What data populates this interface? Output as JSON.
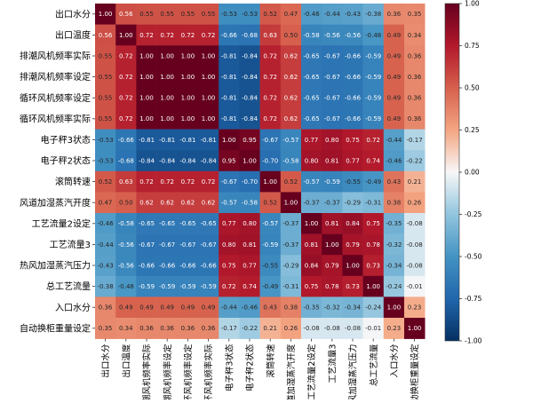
{
  "chart_data": {
    "type": "heatmap",
    "title": "",
    "xlabel": "",
    "ylabel": "",
    "labels": [
      "出口水分",
      "出口温度",
      "排潮风机频率实际",
      "排潮风机频率设定",
      "循环风机频率设定",
      "循环风机频率实际",
      "电子秤3状态",
      "电子秤2状态",
      "滚筒转速",
      "风道加湿蒸汽开度",
      "工艺流量2设定",
      "工艺流量3",
      "热风加湿蒸汽压力",
      "总工艺流量",
      "入口水分",
      "自动换柜重量设定"
    ],
    "matrix": [
      [
        1.0,
        0.56,
        0.55,
        0.55,
        0.55,
        0.55,
        -0.53,
        -0.53,
        0.52,
        0.47,
        -0.46,
        -0.44,
        -0.43,
        -0.38,
        0.36,
        0.35
      ],
      [
        0.56,
        1.0,
        0.72,
        0.72,
        0.72,
        0.72,
        -0.66,
        -0.68,
        0.63,
        0.5,
        -0.58,
        -0.56,
        -0.56,
        -0.48,
        0.49,
        0.34
      ],
      [
        0.55,
        0.72,
        1.0,
        1.0,
        1.0,
        1.0,
        -0.81,
        -0.84,
        0.72,
        0.62,
        -0.65,
        -0.67,
        -0.66,
        -0.59,
        0.49,
        0.36
      ],
      [
        0.55,
        0.72,
        1.0,
        1.0,
        1.0,
        1.0,
        -0.81,
        -0.84,
        0.72,
        0.62,
        -0.65,
        -0.67,
        -0.66,
        -0.59,
        0.49,
        0.36
      ],
      [
        0.55,
        0.72,
        1.0,
        1.0,
        1.0,
        1.0,
        -0.81,
        -0.84,
        0.72,
        0.62,
        -0.65,
        -0.67,
        -0.66,
        -0.59,
        0.49,
        0.36
      ],
      [
        0.55,
        0.72,
        1.0,
        1.0,
        1.0,
        1.0,
        -0.81,
        -0.84,
        0.72,
        0.62,
        -0.65,
        -0.67,
        -0.66,
        -0.59,
        0.49,
        0.36
      ],
      [
        -0.53,
        -0.66,
        -0.81,
        -0.81,
        -0.81,
        -0.81,
        1.0,
        0.95,
        -0.67,
        -0.57,
        0.77,
        0.8,
        0.75,
        0.72,
        -0.44,
        -0.17
      ],
      [
        -0.53,
        -0.68,
        -0.84,
        -0.84,
        -0.84,
        -0.84,
        0.95,
        1.0,
        -0.7,
        -0.58,
        0.8,
        0.81,
        0.77,
        0.74,
        -0.46,
        -0.22
      ],
      [
        0.52,
        0.63,
        0.72,
        0.72,
        0.72,
        0.72,
        -0.67,
        -0.7,
        1.0,
        0.52,
        -0.57,
        -0.59,
        -0.55,
        -0.49,
        0.43,
        0.21
      ],
      [
        0.47,
        0.5,
        0.62,
        0.62,
        0.62,
        0.62,
        -0.57,
        -0.58,
        0.52,
        1.0,
        -0.37,
        -0.37,
        -0.29,
        -0.31,
        0.38,
        0.26
      ],
      [
        -0.46,
        -0.58,
        -0.65,
        -0.65,
        -0.65,
        -0.65,
        0.77,
        0.8,
        -0.57,
        -0.37,
        1.0,
        0.81,
        0.84,
        0.75,
        -0.35,
        -0.08
      ],
      [
        -0.44,
        -0.56,
        -0.67,
        -0.67,
        -0.67,
        -0.67,
        0.8,
        0.81,
        -0.59,
        -0.37,
        0.81,
        1.0,
        0.79,
        0.78,
        -0.32,
        -0.08
      ],
      [
        -0.43,
        -0.56,
        -0.66,
        -0.66,
        -0.66,
        -0.66,
        0.75,
        0.77,
        -0.55,
        -0.29,
        0.84,
        0.79,
        1.0,
        0.73,
        -0.34,
        -0.08
      ],
      [
        -0.38,
        -0.48,
        -0.59,
        -0.59,
        -0.59,
        -0.59,
        0.72,
        0.74,
        -0.49,
        -0.31,
        0.75,
        0.78,
        0.73,
        1.0,
        -0.24,
        -0.01
      ],
      [
        0.36,
        0.49,
        0.49,
        0.49,
        0.49,
        0.49,
        -0.44,
        -0.46,
        0.43,
        0.38,
        -0.35,
        -0.32,
        -0.34,
        -0.24,
        1.0,
        0.23
      ],
      [
        0.35,
        0.34,
        0.36,
        0.36,
        0.36,
        0.36,
        -0.17,
        -0.22,
        0.21,
        0.26,
        -0.08,
        -0.08,
        -0.08,
        -0.01,
        0.23,
        1.0
      ]
    ],
    "vmin": -1.0,
    "vmax": 1.0,
    "colormap": "RdBu_r",
    "colorbar_ticks": [
      "1.00",
      "0.75",
      "0.50",
      "0.25",
      "0.00",
      "-0.25",
      "-0.50",
      "-0.75",
      "-1.00"
    ],
    "colors": {
      "low": "#053061",
      "mid": "#f7f7f7",
      "high": "#67001f"
    }
  }
}
